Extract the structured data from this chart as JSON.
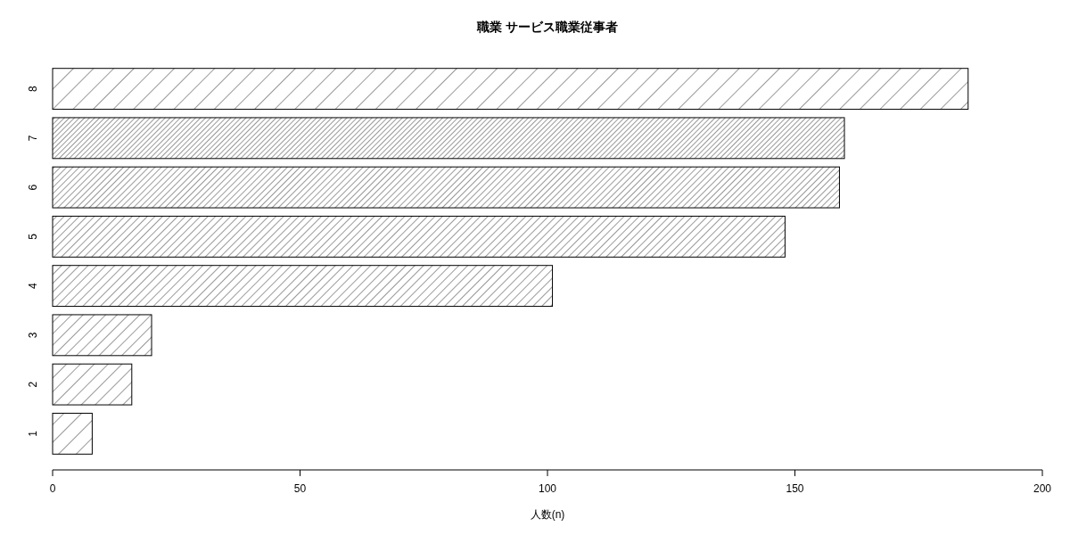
{
  "chart_data": {
    "type": "bar",
    "orientation": "horizontal",
    "title": "職業 サービス職業従事者",
    "xlabel": "人数(n)",
    "categories": [
      "8",
      "7",
      "6",
      "5",
      "4",
      "3",
      "2",
      "1"
    ],
    "values": [
      185,
      160,
      159,
      148,
      101,
      20,
      16,
      8
    ],
    "xlim": [
      0,
      200
    ],
    "xticks": [
      0,
      50,
      100,
      150,
      200
    ]
  }
}
